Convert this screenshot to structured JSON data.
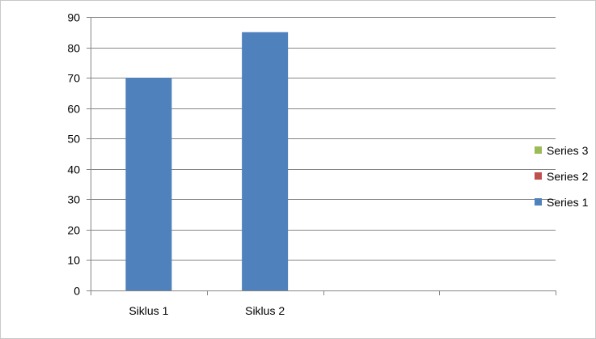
{
  "chart_data": {
    "type": "bar",
    "categories": [
      "Siklus 1",
      "Siklus 2",
      "",
      ""
    ],
    "series": [
      {
        "name": "Series 1",
        "color": "#4f81bd",
        "values": [
          70,
          85,
          null,
          null
        ]
      },
      {
        "name": "Series 2",
        "color": "#c0504d",
        "values": [
          null,
          null,
          null,
          null
        ]
      },
      {
        "name": "Series 3",
        "color": "#9bbb59",
        "values": [
          null,
          null,
          null,
          null
        ]
      }
    ],
    "y_ticks": [
      "0",
      "10",
      "20",
      "30",
      "40",
      "50",
      "60",
      "70",
      "80",
      "90"
    ],
    "ylim": [
      0,
      90
    ],
    "grid": true,
    "legend": {
      "placement": "right",
      "items": [
        "Series 3",
        "Series 2",
        "Series 1"
      ]
    }
  }
}
